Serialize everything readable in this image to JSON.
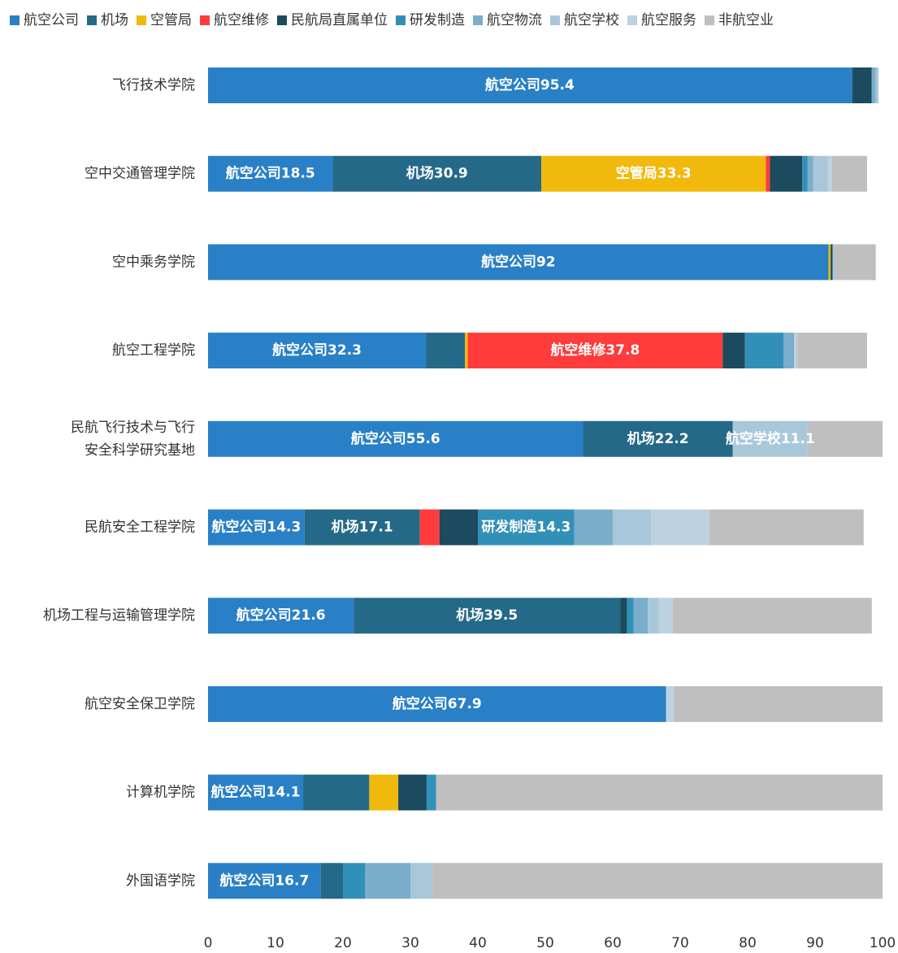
{
  "chart_data": {
    "type": "bar",
    "orientation": "horizontal",
    "stacked": true,
    "legend_position": "top",
    "xlim": [
      0,
      100
    ],
    "x_ticks": [
      0,
      10,
      20,
      30,
      40,
      50,
      60,
      70,
      80,
      90,
      100
    ],
    "grid": false,
    "categories": [
      "飞行技术学院",
      "空中交通管理学院",
      "空中乘务学院",
      "航空工程学院",
      "民航飞行技术与飞行安全科学研究基地",
      "民航安全工程学院",
      "机场工程与运输管理学院",
      "航空安全保卫学院",
      "计算机学院",
      "外国语学院"
    ],
    "category_label_lines": [
      [
        "飞行技术学院"
      ],
      [
        "空中交通管理学院"
      ],
      [
        "空中乘务学院"
      ],
      [
        "航空工程学院"
      ],
      [
        "民航飞行技术与飞行",
        "安全科学研究基地"
      ],
      [
        "民航安全工程学院"
      ],
      [
        "机场工程与运输管理学院"
      ],
      [
        "航空安全保卫学院"
      ],
      [
        "计算机学院"
      ],
      [
        "外国语学院"
      ]
    ],
    "series": [
      {
        "name": "航空公司",
        "color": "#2980c6",
        "values": [
          95.4,
          18.5,
          92.0,
          32.3,
          55.6,
          14.3,
          21.6,
          67.9,
          14.1,
          16.7
        ]
      },
      {
        "name": "机场",
        "color": "#256988",
        "values": [
          0.2,
          30.9,
          0.0,
          5.8,
          22.2,
          17.1,
          39.5,
          0.0,
          9.8,
          3.3
        ]
      },
      {
        "name": "空管局",
        "color": "#f0b90b",
        "values": [
          0.0,
          33.3,
          0.3,
          0.4,
          0.0,
          0.0,
          0.0,
          0.0,
          4.3,
          0.0
        ]
      },
      {
        "name": "航空维修",
        "color": "#ff3b3b",
        "values": [
          0.0,
          0.6,
          0.0,
          37.8,
          0.0,
          2.9,
          0.0,
          0.0,
          0.0,
          0.0
        ]
      },
      {
        "name": "民航局直属单位",
        "color": "#1c4a5e",
        "values": [
          2.8,
          4.8,
          0.3,
          3.3,
          0.0,
          5.7,
          1.0,
          0.0,
          4.2,
          0.0
        ]
      },
      {
        "name": "研发制造",
        "color": "#3290b8",
        "values": [
          0.0,
          0.8,
          0.0,
          5.7,
          0.0,
          14.3,
          1.0,
          0.0,
          1.4,
          3.3
        ]
      },
      {
        "name": "航空物流",
        "color": "#7aaecb",
        "values": [
          0.6,
          0.8,
          0.0,
          1.6,
          0.0,
          5.7,
          2.1,
          0.0,
          0.0,
          6.7
        ]
      },
      {
        "name": "航空学校",
        "color": "#a9c7da",
        "values": [
          0.4,
          2.2,
          0.3,
          0.0,
          11.1,
          5.7,
          1.6,
          0.0,
          0.0,
          3.3
        ]
      },
      {
        "name": "航空服务",
        "color": "#bdd2e0",
        "values": [
          0.0,
          0.6,
          0.0,
          0.4,
          0.0,
          8.6,
          2.1,
          1.2,
          0.0,
          0.0
        ]
      },
      {
        "name": "非航空业",
        "color": "#bfbfbf",
        "values": [
          0.0,
          5.2,
          6.1,
          10.4,
          11.1,
          22.9,
          29.5,
          30.9,
          66.2,
          66.7
        ]
      }
    ]
  }
}
